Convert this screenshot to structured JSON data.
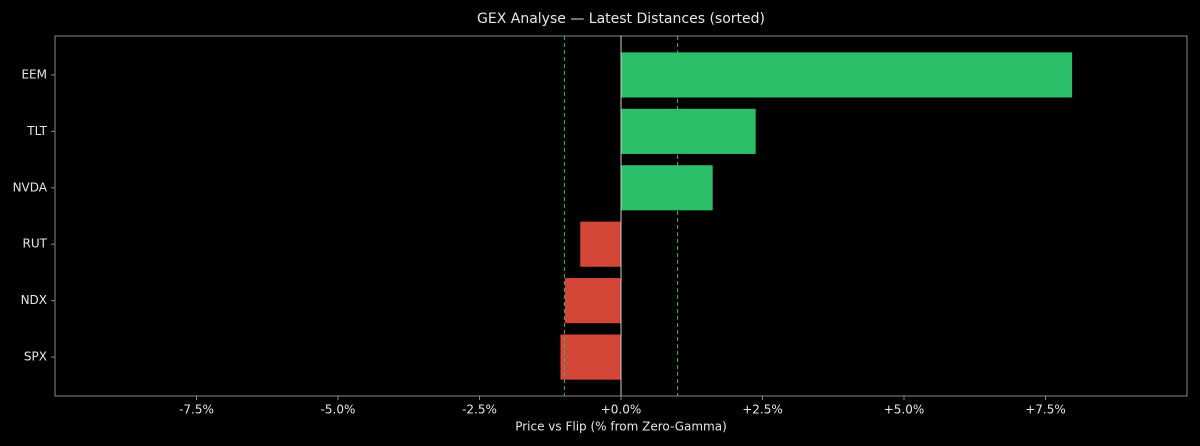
{
  "chart_data": {
    "type": "barh",
    "title": "GEX Analyse — Latest Distances (sorted)",
    "x_label": "Price vs Flip (% from Zero-Gamma)",
    "categories": [
      "EEM",
      "TLT",
      "NVDA",
      "RUT",
      "NDX",
      "SPX"
    ],
    "values": [
      7.97,
      2.38,
      1.62,
      -0.72,
      -0.99,
      -1.07
    ],
    "colors": [
      "#2bbf6a",
      "#2bbf6a",
      "#2bbf6a",
      "#d44637",
      "#d44637",
      "#d44637"
    ],
    "xlim": [
      -10,
      10
    ],
    "xticks": [
      {
        "value": -7.5,
        "label": "-7.5%"
      },
      {
        "value": -5,
        "label": "-5.0%"
      },
      {
        "value": -2.5,
        "label": "-2.5%"
      },
      {
        "value": 0,
        "label": "+0.0%"
      },
      {
        "value": 2.5,
        "label": "+2.5%"
      },
      {
        "value": 5,
        "label": "+5.0%"
      },
      {
        "value": 7.5,
        "label": "+7.5%"
      }
    ],
    "ref_lines": [
      -1,
      1
    ],
    "ref_color": "#2bbf6a"
  }
}
